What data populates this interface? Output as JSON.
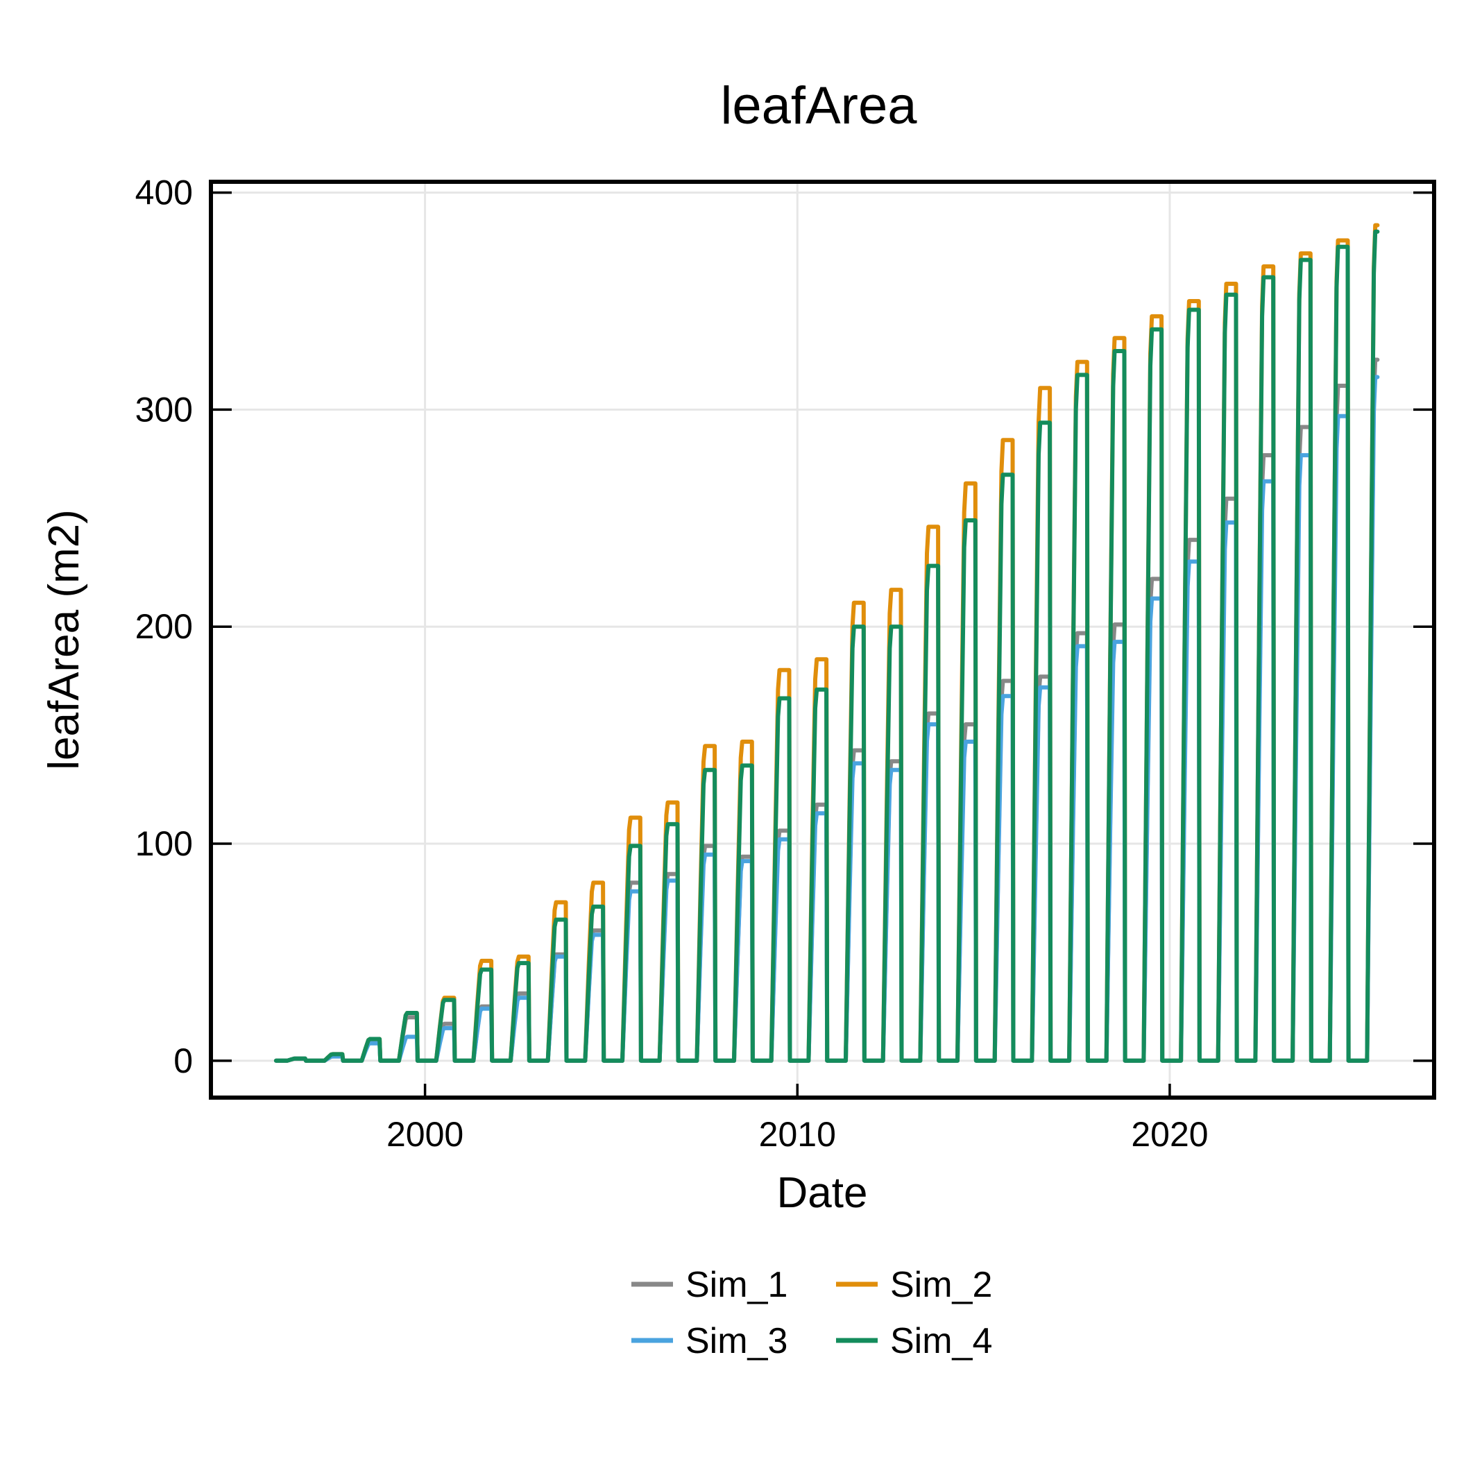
{
  "chart_data": {
    "type": "line",
    "title": "leafArea",
    "xlabel": "Date",
    "ylabel": "leafArea (m2)",
    "xlim": [
      1994.25,
      2027.1
    ],
    "ylim": [
      -17,
      405
    ],
    "x_ticks": [
      2000,
      2010,
      2020
    ],
    "y_ticks": [
      0,
      100,
      200,
      300,
      400
    ],
    "grid": true,
    "legend": "bottom-center, 2 columns",
    "seasonal_pattern": "each year: zero until spring, rises to the yearly peak, stays level through summer, drops to zero in autumn",
    "years": [
      1996,
      1997,
      1998,
      1999,
      2000,
      2001,
      2002,
      2003,
      2004,
      2005,
      2006,
      2007,
      2008,
      2009,
      2010,
      2011,
      2012,
      2013,
      2014,
      2015,
      2016,
      2017,
      2018,
      2019,
      2020,
      2021,
      2022,
      2023,
      2024,
      2025
    ],
    "series": [
      {
        "name": "Sim_1",
        "color": "#888888",
        "peaks": [
          1,
          2,
          9,
          20,
          17,
          25,
          31,
          49,
          60,
          82,
          86,
          99,
          94,
          106,
          118,
          143,
          138,
          160,
          155,
          175,
          177,
          197,
          201,
          222,
          240,
          259,
          279,
          292,
          311,
          323
        ]
      },
      {
        "name": "Sim_2",
        "color": "#e08e0b",
        "peaks": [
          1,
          3,
          10,
          22,
          29,
          46,
          48,
          73,
          82,
          112,
          119,
          145,
          147,
          180,
          185,
          211,
          217,
          246,
          266,
          286,
          310,
          322,
          333,
          343,
          350,
          358,
          366,
          372,
          378,
          385
        ]
      },
      {
        "name": "Sim_3",
        "color": "#4aa3df",
        "peaks": [
          1,
          2,
          8,
          11,
          15,
          24,
          29,
          48,
          58,
          78,
          83,
          95,
          92,
          102,
          114,
          137,
          134,
          155,
          147,
          168,
          172,
          191,
          193,
          213,
          230,
          248,
          267,
          279,
          297,
          315
        ]
      },
      {
        "name": "Sim_4",
        "color": "#148c5c",
        "peaks": [
          1,
          3,
          10,
          22,
          28,
          42,
          45,
          65,
          71,
          99,
          109,
          134,
          136,
          167,
          171,
          200,
          200,
          228,
          249,
          270,
          294,
          316,
          327,
          337,
          346,
          353,
          361,
          369,
          375,
          382
        ]
      }
    ]
  }
}
